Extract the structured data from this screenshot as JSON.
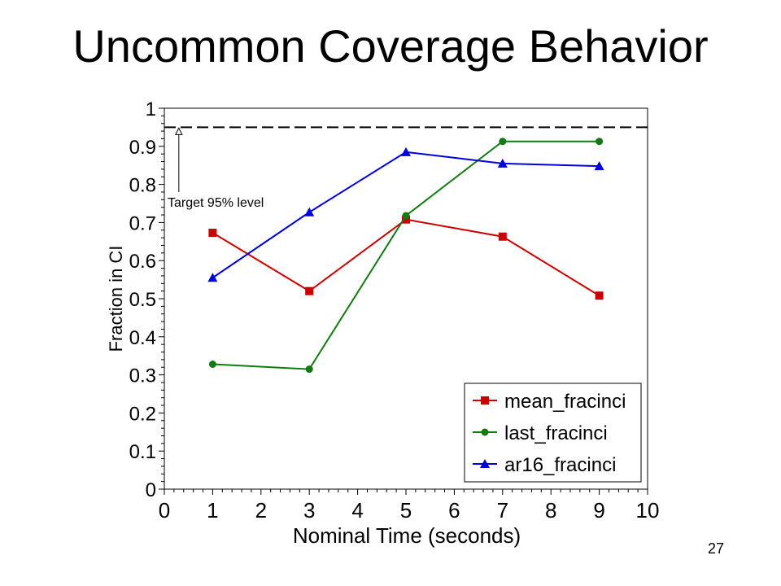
{
  "slide": {
    "title": "Uncommon Coverage Behavior",
    "page_number": "27"
  },
  "chart_data": {
    "type": "line",
    "xlabel": "Nominal Time (seconds)",
    "ylabel": "Fraction in CI",
    "xlim": [
      0,
      10
    ],
    "ylim": [
      0,
      1
    ],
    "x_ticks": [
      "0",
      "1",
      "2",
      "3",
      "4",
      "5",
      "6",
      "7",
      "8",
      "9",
      "10"
    ],
    "y_ticks": [
      "0",
      "0.1",
      "0.2",
      "0.3",
      "0.4",
      "0.5",
      "0.6",
      "0.7",
      "0.8",
      "0.9",
      "1"
    ],
    "grid": false,
    "legend_position": "bottom-right",
    "x": [
      1,
      3,
      5,
      7,
      9
    ],
    "series": [
      {
        "name": "mean_fracinci",
        "color": "#cc0000",
        "marker": "square",
        "values": [
          0.673,
          0.52,
          0.708,
          0.663,
          0.508
        ]
      },
      {
        "name": "last_fracinci",
        "color": "#117a11",
        "marker": "circle",
        "values": [
          0.328,
          0.315,
          0.718,
          0.913,
          0.913
        ]
      },
      {
        "name": "ar16_fracinci",
        "color": "#0000dd",
        "marker": "triangle",
        "values": [
          0.555,
          0.727,
          0.885,
          0.855,
          0.848
        ]
      }
    ],
    "reference_line": {
      "y": 0.95,
      "style": "dashed",
      "label": "Target 95% level"
    }
  }
}
